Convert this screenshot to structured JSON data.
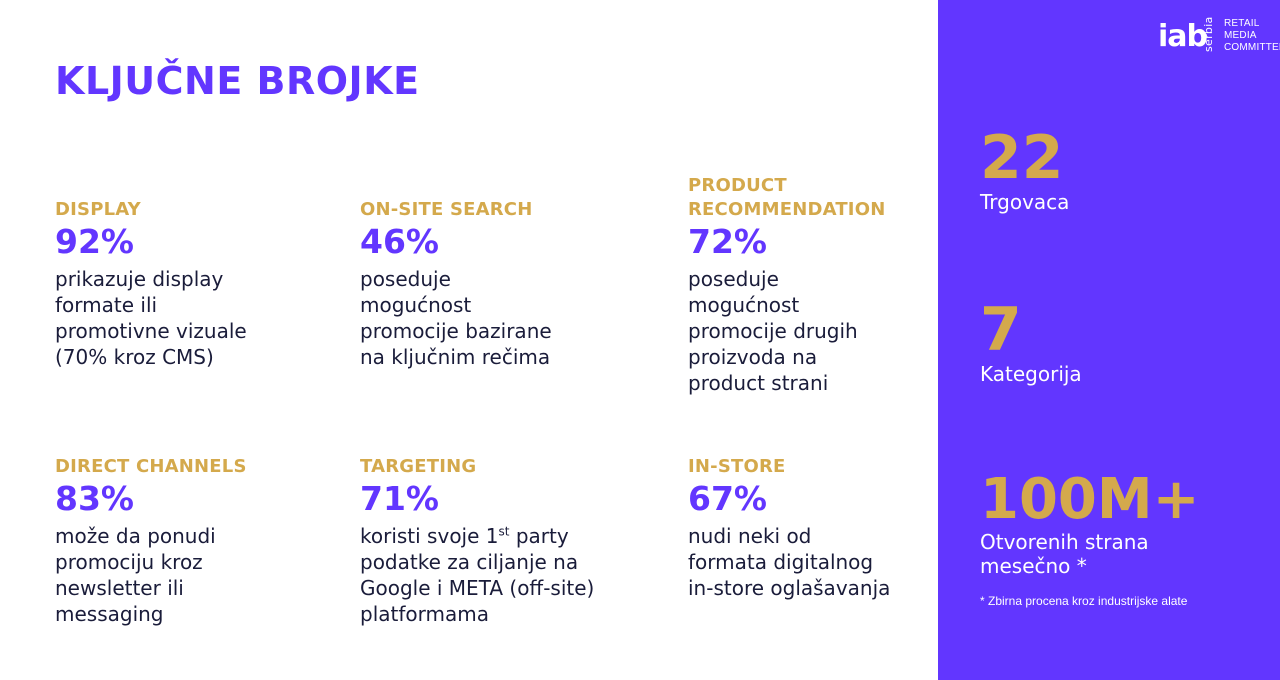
{
  "colors": {
    "title": "#6236ff",
    "label": "#d4a94c",
    "value": "#6236ff",
    "text": "#1a1c3a",
    "panel": "#6236ff",
    "panel_value": "#d4a94c",
    "panel_text": "#ffffff"
  },
  "title": "KLJUČNE BROJKE",
  "stats": [
    {
      "label": "DISPLAY",
      "value": "92%",
      "description": "prikazuje display\nformate ili\npromotivne vizuale\n(70% kroz CMS)"
    },
    {
      "label": "ON-SITE SEARCH",
      "value": "46%",
      "description": "poseduje\nmogućnost\npromocije bazirane\nna ključnim rečima"
    },
    {
      "label": "PRODUCT\nRECOMMENDATION",
      "value": "72%",
      "description": "poseduje\nmogućnost\npromocije drugih\nproizvoda na\nproduct strani"
    },
    {
      "label": "DIRECT CHANNELS",
      "value": "83%",
      "description": "može da ponudi\npromociju kroz\nnewsletter ili\nmessaging"
    },
    {
      "label": "TARGETING",
      "value": "71%",
      "description_before": "koristi svoje 1",
      "description_sup": "st",
      "description_after": " party\npodatke za ciljanje na\nGoogle i META (off-site)\nplatformama"
    },
    {
      "label": "IN-STORE",
      "value": "67%",
      "description": "nudi neki od\nformata digitalnog\nin-store oglašavanja"
    }
  ],
  "logo": {
    "brand": "iab",
    "country": "serbia",
    "committee": "RETAIL\nMEDIA\nCOMMITTEE"
  },
  "kpis": [
    {
      "value": "22",
      "label": "Trgovaca"
    },
    {
      "value": "7",
      "label": "Kategorija"
    },
    {
      "value": "100M+",
      "label": "Otvorenih strana\nmesečno *"
    }
  ],
  "footnote": "* Zbirna procena kroz industrijske alate"
}
